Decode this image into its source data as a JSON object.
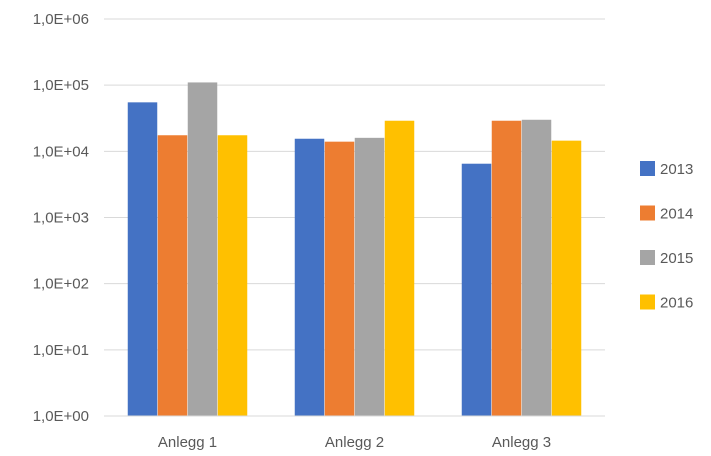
{
  "chart_data": {
    "type": "bar",
    "title": "",
    "xlabel": "",
    "ylabel": "",
    "yscale": "log",
    "ylim": [
      1,
      1000000
    ],
    "grid": true,
    "legend_position": "right",
    "y_ticks": [
      "1,0E+00",
      "1,0E+01",
      "1,0E+02",
      "1,0E+03",
      "1,0E+04",
      "1,0E+05",
      "1,0E+06"
    ],
    "categories": [
      "Anlegg 1",
      "Anlegg 2",
      "Anlegg 3"
    ],
    "series": [
      {
        "name": "2013",
        "color": "#4472c4",
        "values": [
          55000,
          15500,
          6500
        ]
      },
      {
        "name": "2014",
        "color": "#ed7d31",
        "values": [
          17500,
          14000,
          29000
        ]
      },
      {
        "name": "2015",
        "color": "#a5a5a5",
        "values": [
          110000,
          16000,
          30000
        ]
      },
      {
        "name": "2016",
        "color": "#ffc000",
        "values": [
          17500,
          29000,
          14500
        ]
      }
    ]
  }
}
